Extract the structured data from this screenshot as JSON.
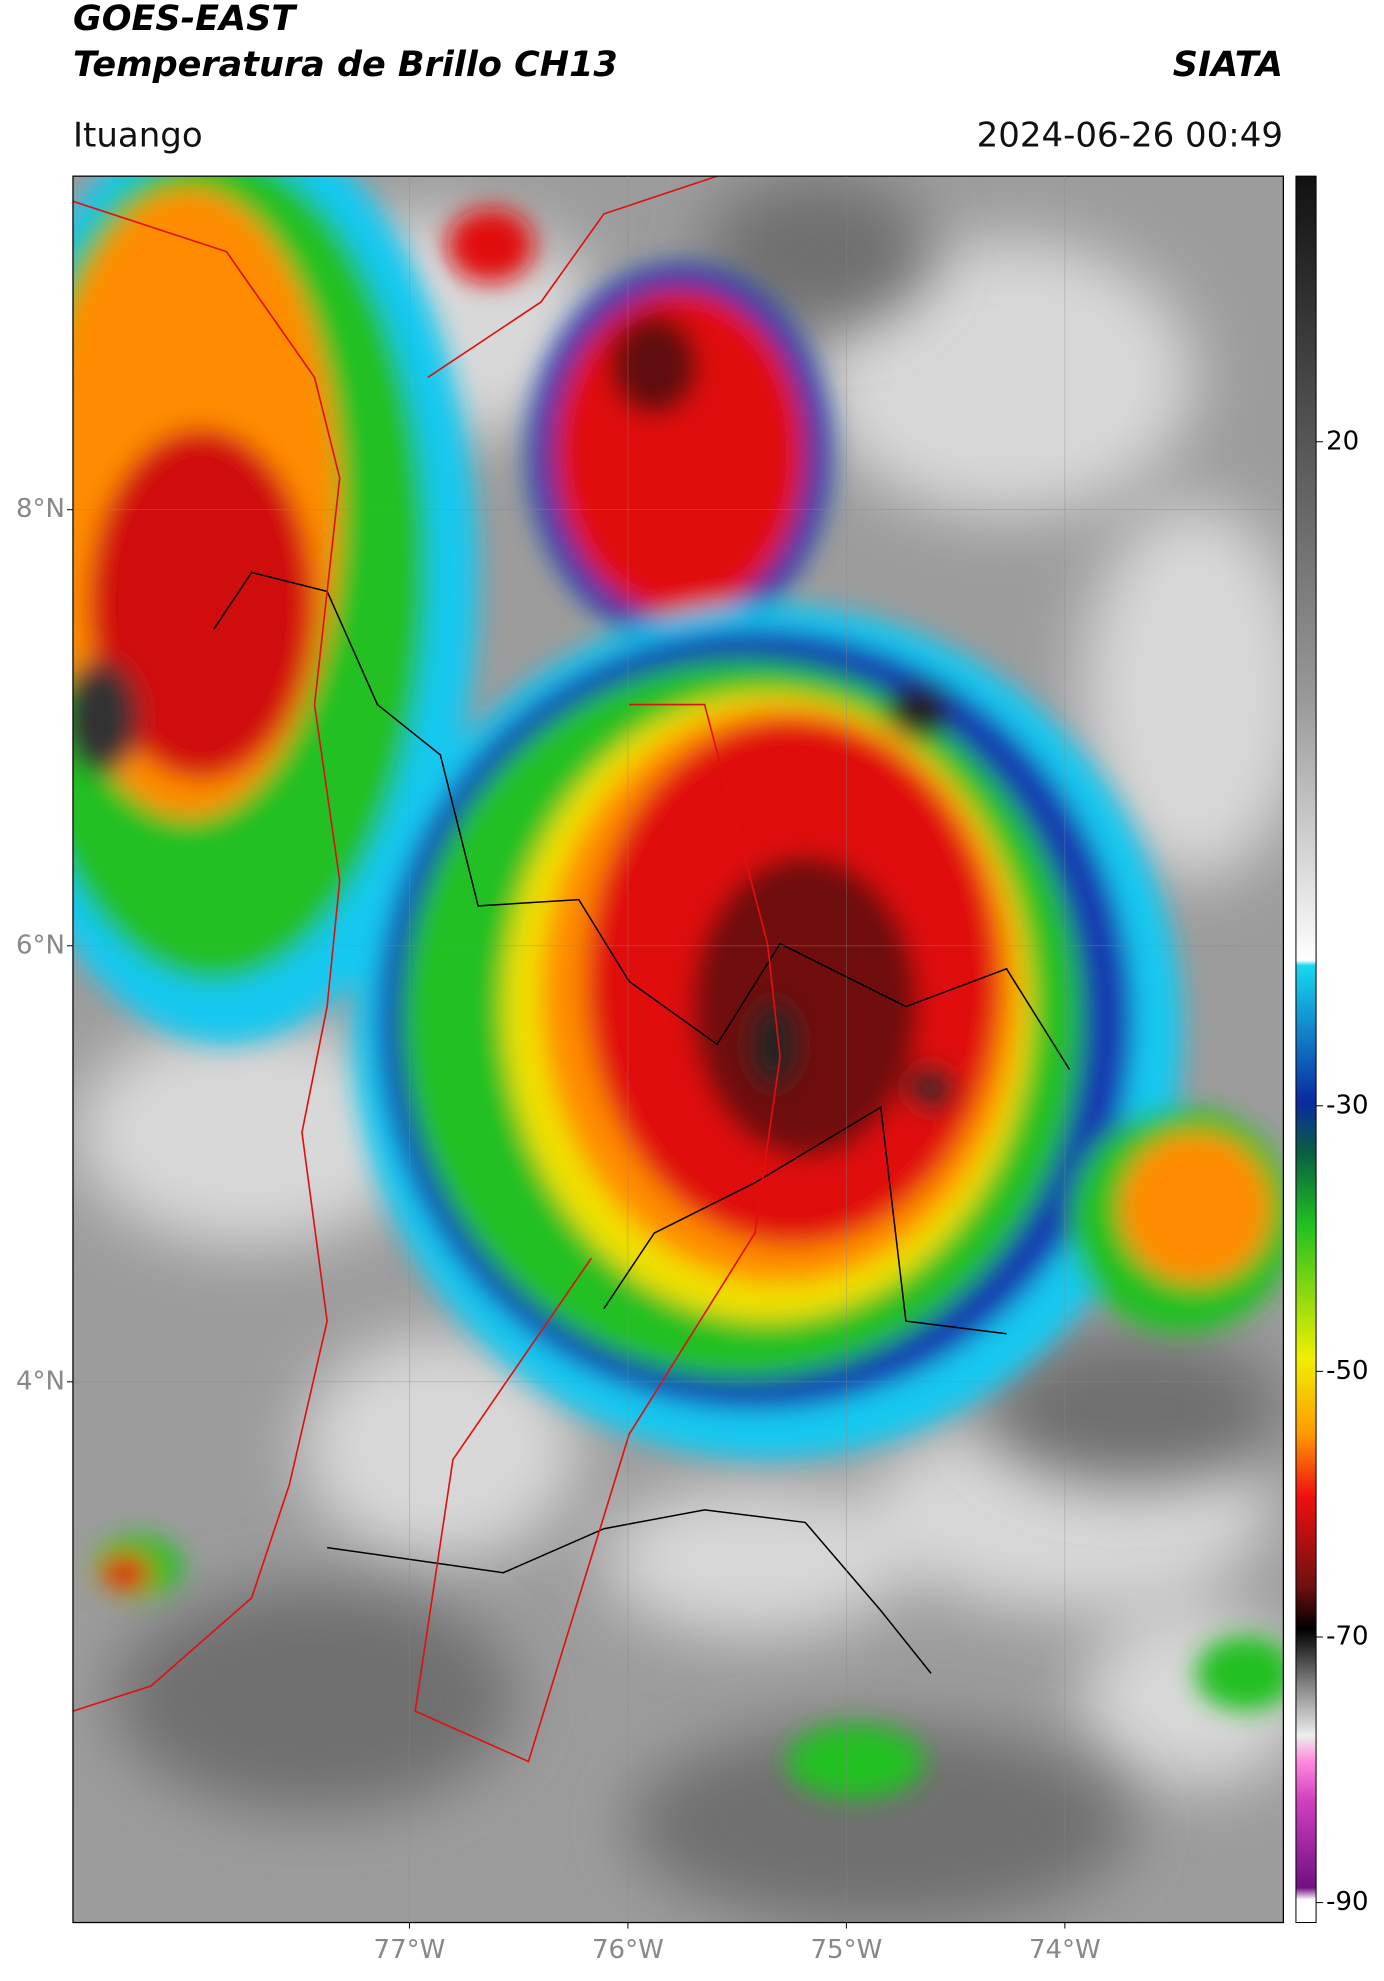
{
  "chart_data": {
    "type": "map",
    "title": "GOES-EAST",
    "subtitle": "Temperatura de Brillo CH13",
    "source": "SIATA",
    "location": "Ituango",
    "datetime": "2024-06-26 00:49",
    "xlim": [
      -78.54,
      -73.0
    ],
    "ylim": [
      1.52,
      9.53
    ],
    "xticks": [
      {
        "value": -77,
        "label": "77°W"
      },
      {
        "value": -76,
        "label": "76°W"
      },
      {
        "value": -75,
        "label": "75°W"
      },
      {
        "value": -74,
        "label": "74°W"
      }
    ],
    "yticks": [
      {
        "value": 8,
        "label": "8°N"
      },
      {
        "value": 6,
        "label": "6°N"
      },
      {
        "value": 4,
        "label": "4°N"
      }
    ],
    "grid": true,
    "colorbar": {
      "lim": [
        -91.5,
        40
      ],
      "ticks": [
        20,
        -30,
        -50,
        -70,
        -90
      ]
    }
  }
}
